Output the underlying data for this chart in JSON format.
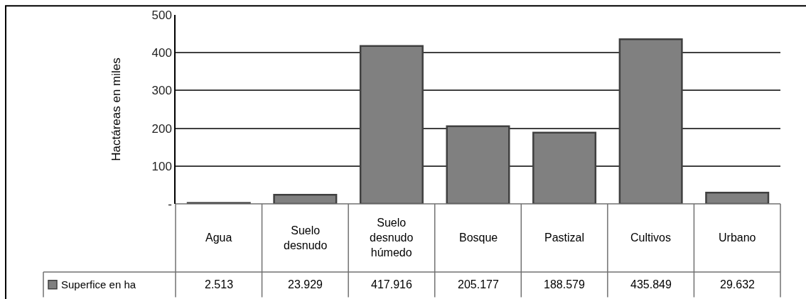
{
  "chart_data": {
    "type": "bar",
    "ylabel": "Hactáreas en miles",
    "categories": [
      "Agua",
      "Suelo desnudo",
      "Suelo desnudo húmedo",
      "Bosque",
      "Pastizal",
      "Cultivos",
      "Urbano"
    ],
    "series": [
      {
        "name": "Superfice en ha",
        "color": "#808080",
        "values": [
          2.513,
          23.929,
          417.916,
          205.177,
          188.579,
          435.849,
          29.632
        ],
        "value_labels": [
          "2.513",
          "23.929",
          "417.916",
          "205.177",
          "188.579",
          "435.849",
          "29.632"
        ]
      }
    ],
    "ylim": [
      0,
      500
    ],
    "yticks": [
      {
        "value": 0,
        "label": "-"
      },
      100,
      200,
      300,
      400,
      500
    ],
    "grid": "y",
    "legend": "bottom left"
  }
}
